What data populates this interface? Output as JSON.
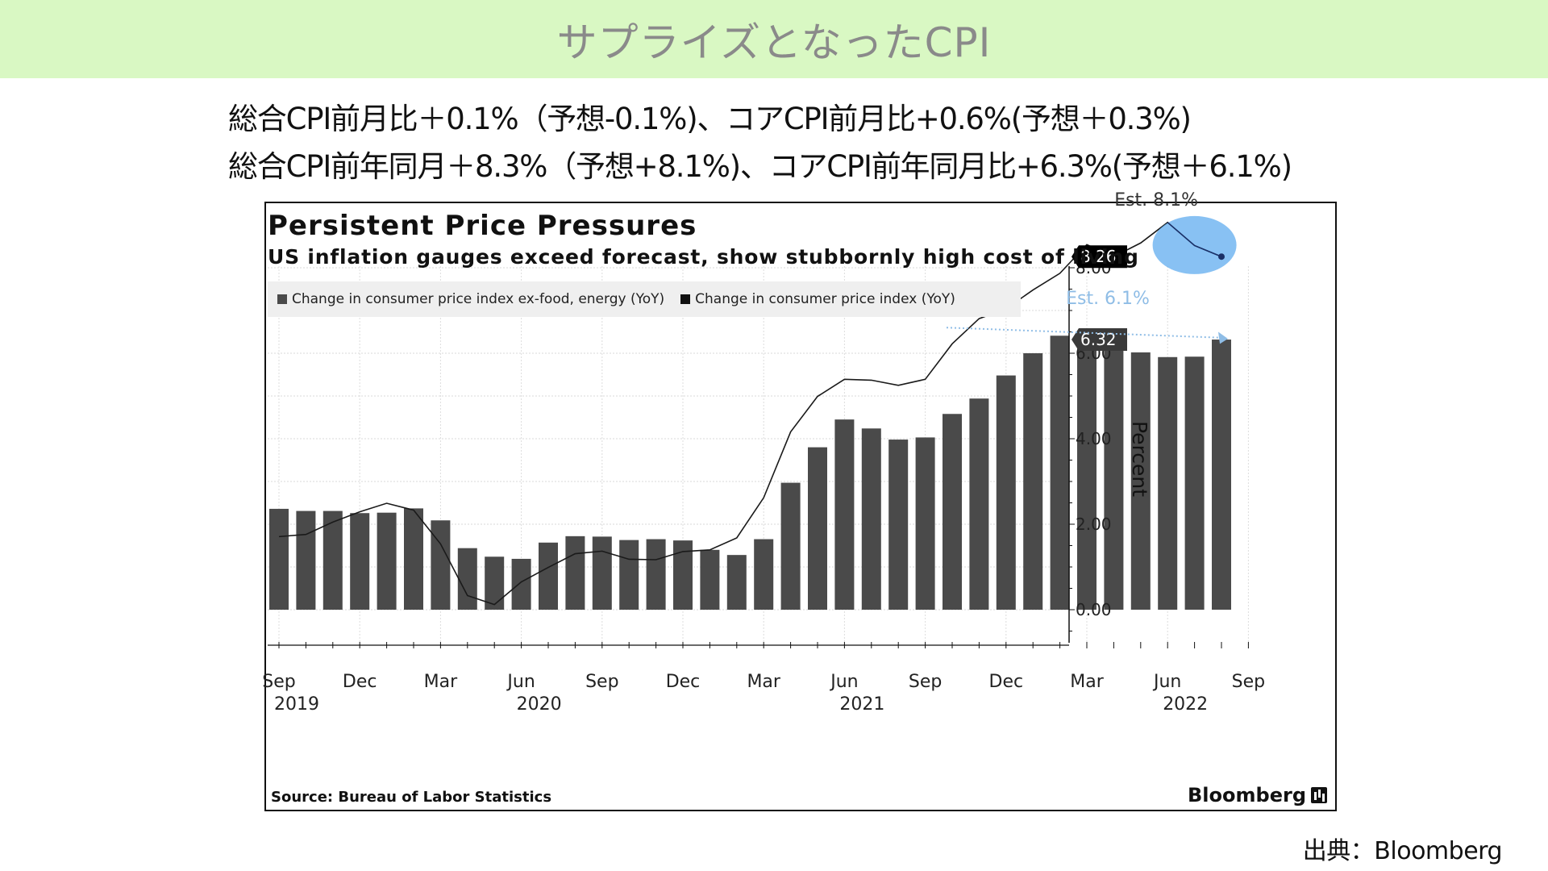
{
  "slide": {
    "title": "サプライズとなったCPI",
    "summary_lines": [
      "総合CPI前月比＋0.1%（予想-0.1%)、コアCPI前月比+0.6%(予想＋0.3%)",
      "総合CPI前年同月＋8.3%（予想+8.1%)、コアCPI前年同月比+6.3%(予想＋6.1%)"
    ],
    "credit": "出典：Bloomberg"
  },
  "chart_data": {
    "type": "bar",
    "title": "Persistent Price Pressures",
    "subtitle": "US inflation gauges exceed forecast, show stubbornly high cost of living",
    "ylabel": "Percent",
    "ylim": [
      -0.9,
      10.0
    ],
    "yticks": [
      0,
      2,
      4,
      6,
      8
    ],
    "ytick_labels": [
      "0.00",
      "2.00",
      "4.00",
      "6.00",
      "8.00"
    ],
    "grid": true,
    "legend_position": "top-left",
    "months": [
      "2019-09",
      "2019-10",
      "2019-11",
      "2019-12",
      "2020-01",
      "2020-02",
      "2020-03",
      "2020-04",
      "2020-05",
      "2020-06",
      "2020-07",
      "2020-08",
      "2020-09",
      "2020-10",
      "2020-11",
      "2020-12",
      "2021-01",
      "2021-02",
      "2021-03",
      "2021-04",
      "2021-05",
      "2021-06",
      "2021-07",
      "2021-08",
      "2021-09",
      "2021-10",
      "2021-11",
      "2021-12",
      "2022-01",
      "2022-02",
      "2022-03",
      "2022-04",
      "2022-05",
      "2022-06",
      "2022-07",
      "2022-08"
    ],
    "x_tick_labels": [
      {
        "month_index": 0,
        "label": "Sep",
        "year": "2019"
      },
      {
        "month_index": 3,
        "label": "Dec"
      },
      {
        "month_index": 6,
        "label": "Mar"
      },
      {
        "month_index": 9,
        "label": "Jun",
        "year": "2020"
      },
      {
        "month_index": 12,
        "label": "Sep"
      },
      {
        "month_index": 15,
        "label": "Dec"
      },
      {
        "month_index": 18,
        "label": "Mar"
      },
      {
        "month_index": 21,
        "label": "Jun",
        "year": "2021"
      },
      {
        "month_index": 24,
        "label": "Sep"
      },
      {
        "month_index": 27,
        "label": "Dec"
      },
      {
        "month_index": 30,
        "label": "Mar"
      },
      {
        "month_index": 33,
        "label": "Jun",
        "year": "2022"
      },
      {
        "month_index": 36,
        "label": "Sep"
      }
    ],
    "series": [
      {
        "name": "Change in consumer price index ex-food, energy (YoY)",
        "kind": "bar",
        "color": "#4a4a4a",
        "values": [
          2.36,
          2.31,
          2.31,
          2.26,
          2.27,
          2.37,
          2.09,
          1.44,
          1.24,
          1.19,
          1.57,
          1.72,
          1.71,
          1.63,
          1.65,
          1.62,
          1.4,
          1.28,
          1.65,
          2.97,
          3.8,
          4.45,
          4.24,
          3.98,
          4.03,
          4.58,
          4.94,
          5.48,
          6.0,
          6.41,
          6.47,
          6.16,
          6.02,
          5.91,
          5.92,
          6.32
        ]
      },
      {
        "name": "Change in consumer price index (YoY)",
        "kind": "line",
        "color": "#1a1a1a",
        "values": [
          1.71,
          1.76,
          2.05,
          2.29,
          2.49,
          2.33,
          1.54,
          0.33,
          0.12,
          0.65,
          0.99,
          1.31,
          1.37,
          1.18,
          1.17,
          1.36,
          1.4,
          1.68,
          2.62,
          4.16,
          4.99,
          5.39,
          5.37,
          5.25,
          5.39,
          6.22,
          6.81,
          7.04,
          7.48,
          7.87,
          8.54,
          8.26,
          8.58,
          9.06,
          8.52,
          8.26
        ]
      }
    ],
    "annotations": [
      {
        "text": "Est. 8.1%",
        "month_index": 33,
        "value": 9.45,
        "color": "#333333"
      },
      {
        "text": "Est. 6.1%",
        "month_index": 31.2,
        "value": 7.15,
        "color": "#8fbde6"
      }
    ],
    "value_badges": [
      {
        "text": "8.26",
        "value": 8.26
      },
      {
        "text": "6.32",
        "value": 6.32
      }
    ],
    "highlight_color": "#5aa9ee",
    "source": "Source: Bureau of Labor Statistics",
    "brand": "Bloomberg"
  }
}
